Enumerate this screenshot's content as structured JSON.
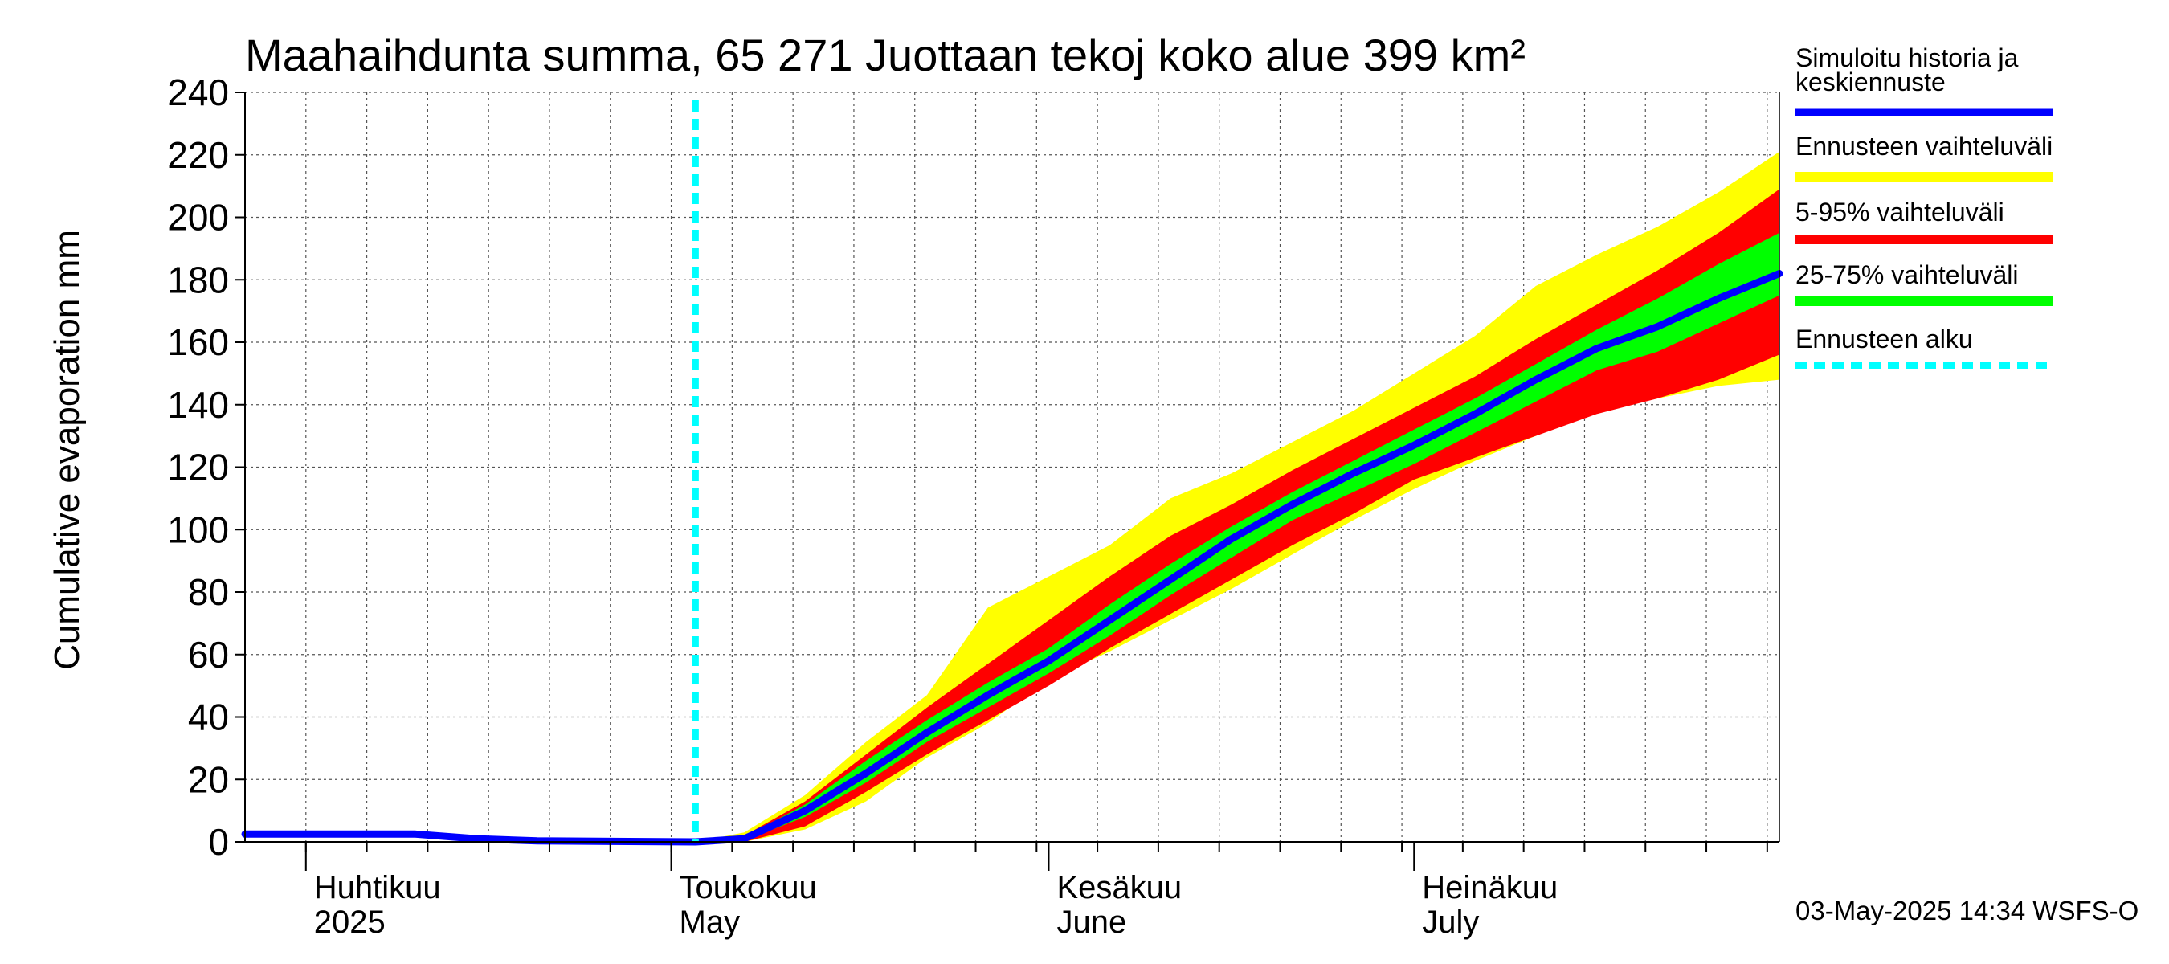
{
  "chart_data": {
    "type": "area",
    "title": "Maahaihdunta summa, 65 271 Juottaan tekoj koko alue 399 km²",
    "ylabel": "Cumulative evaporation   mm",
    "xlabel": "",
    "ylim": [
      0,
      240
    ],
    "yticks": [
      0,
      20,
      40,
      60,
      80,
      100,
      120,
      140,
      160,
      180,
      200,
      220,
      240
    ],
    "xlim": [
      "2025-03-27",
      "2025-07-31"
    ],
    "grid": true,
    "legend_position": "right",
    "month_labels": [
      {
        "fi": "Huhtikuu",
        "en": "2025",
        "date": "2025-04-01"
      },
      {
        "fi": "Toukokuu",
        "en": "May",
        "date": "2025-05-01"
      },
      {
        "fi": "Kesäkuu",
        "en": "June",
        "date": "2025-06-01"
      },
      {
        "fi": "Heinäkuu",
        "en": "July",
        "date": "2025-07-01"
      }
    ],
    "forecast_start": "2025-05-03",
    "x": [
      "2025-03-27",
      "2025-04-10",
      "2025-04-15",
      "2025-04-20",
      "2025-05-03",
      "2025-05-07",
      "2025-05-12",
      "2025-05-17",
      "2025-05-22",
      "2025-05-27",
      "2025-06-01",
      "2025-06-06",
      "2025-06-11",
      "2025-06-16",
      "2025-06-21",
      "2025-06-26",
      "2025-07-01",
      "2025-07-06",
      "2025-07-11",
      "2025-07-16",
      "2025-07-21",
      "2025-07-26",
      "2025-07-31"
    ],
    "series": [
      {
        "name": "Simuloitu historia ja keskiennuste",
        "color": "#0000ff",
        "values": [
          2.5,
          2.5,
          1.0,
          0.3,
          0,
          1,
          10,
          22,
          35,
          47,
          58,
          71,
          84,
          97,
          108,
          118,
          127,
          137,
          148,
          158,
          165,
          174,
          182
        ]
      },
      {
        "name": "Ennusteen vaihteluväli",
        "color": "#ffff00",
        "upper": [
          null,
          null,
          null,
          null,
          0,
          3,
          15,
          32,
          47,
          75,
          85,
          95,
          110,
          118,
          128,
          138,
          150,
          162,
          178,
          188,
          197,
          208,
          221
        ],
        "lower": [
          null,
          null,
          null,
          null,
          0,
          0,
          4,
          13,
          27,
          38,
          52,
          61,
          71,
          81,
          92,
          103,
          113,
          122,
          130,
          138,
          142,
          146,
          148
        ]
      },
      {
        "name": "5-95% vaihteluväli",
        "color": "#ff0000",
        "upper": [
          null,
          null,
          null,
          null,
          0,
          2,
          13,
          28,
          43,
          57,
          71,
          85,
          98,
          108,
          119,
          129,
          139,
          149,
          161,
          172,
          183,
          195,
          209
        ],
        "lower": [
          null,
          null,
          null,
          null,
          0,
          0,
          5,
          16,
          28,
          39,
          50,
          62,
          73,
          84,
          95,
          105,
          116,
          123,
          130,
          137,
          142,
          148,
          156
        ]
      },
      {
        "name": "25-75% vaihteluväli",
        "color": "#00ff00",
        "upper": [
          null,
          null,
          null,
          null,
          0,
          1.5,
          12,
          26,
          39,
          51,
          62,
          76,
          89,
          101,
          112,
          122,
          132,
          142,
          153,
          164,
          174,
          185,
          195
        ],
        "lower": [
          null,
          null,
          null,
          null,
          0,
          0.5,
          8,
          19,
          32,
          43,
          54,
          66,
          79,
          91,
          103,
          112,
          121,
          131,
          141,
          151,
          157,
          166,
          175
        ]
      },
      {
        "name": "Ennusteen alku",
        "color": "#00ffff"
      }
    ]
  },
  "footer": "03-May-2025 14:34 WSFS-O"
}
